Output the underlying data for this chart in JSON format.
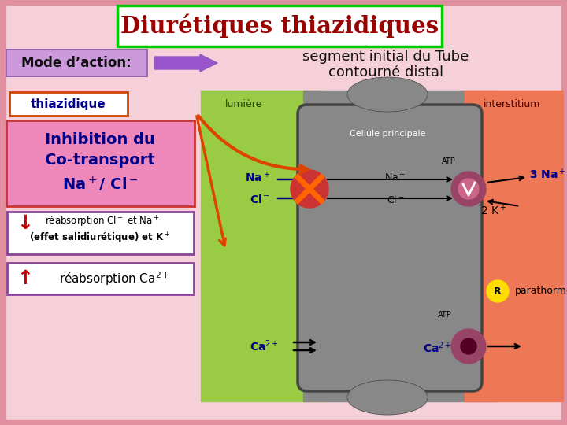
{
  "bg_color": "#f0c0c8",
  "title": "Diurétiques thiazidiques",
  "title_color": "#990000",
  "title_bg": "#ffffff",
  "title_border": "#00cc00",
  "mode_label": "Mode d’action:",
  "arrow_label1": "segment initial du Tube",
  "arrow_label2": "contourné distal",
  "lumiere_label": "lumière",
  "interstitium_label": "interstitium",
  "cellule_label": "Cellule principale",
  "thiazidique_label": "thiazidique",
  "reab1_line1": "réabsorption Cl- et Na+",
  "reab1_line2": "(effet salidiurétique) et K+",
  "reab2_text": "réabsorption Ca2+",
  "r_label": "R",
  "parathormone_label": "parathormone",
  "atp_label": "ATP",
  "lumiere_color": "#99cc44",
  "interstitium_color": "#ee7755",
  "cell_color": "#888888",
  "cell_border": "#444444",
  "pump_color": "#994466",
  "blocked_color": "#cc3333",
  "x_color": "#ff6600",
  "orange_arrow_color": "#dd4400",
  "blue_text_color": "#000088",
  "purple_box_border": "#884499",
  "inhibition_bg": "#ee88bb",
  "mode_bg": "#cc99dd",
  "mode_border": "#9966bb"
}
